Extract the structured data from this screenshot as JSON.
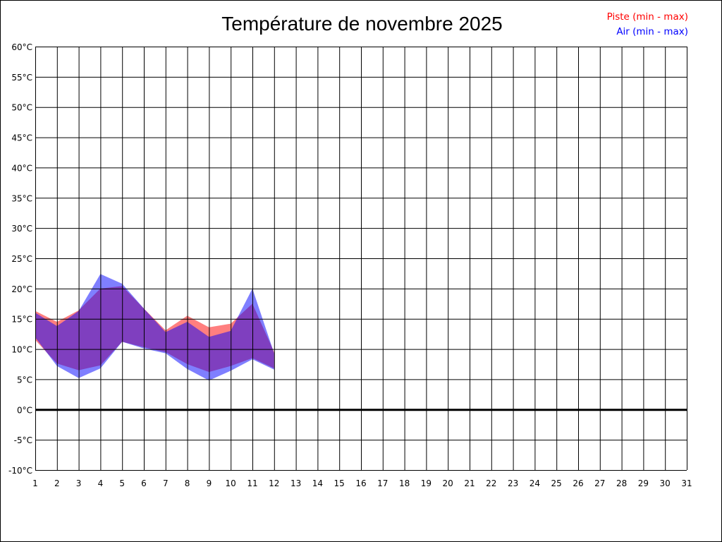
{
  "chart_data": {
    "type": "area",
    "title": "Température de novembre 2025",
    "xlabel": "",
    "ylabel": "",
    "x_ticks": [
      "1",
      "2",
      "3",
      "4",
      "5",
      "6",
      "7",
      "8",
      "9",
      "10",
      "11",
      "12",
      "13",
      "14",
      "15",
      "16",
      "17",
      "18",
      "19",
      "20",
      "21",
      "22",
      "23",
      "24",
      "25",
      "26",
      "27",
      "28",
      "29",
      "30",
      "31"
    ],
    "y_ticks": [
      "60°C",
      "55°C",
      "50°C",
      "45°C",
      "40°C",
      "35°C",
      "30°C",
      "25°C",
      "20°C",
      "15°C",
      "10°C",
      "5°C",
      "0°C",
      "-5°C",
      "-10°C"
    ],
    "xlim": [
      1,
      31
    ],
    "ylim": [
      -10,
      60
    ],
    "grid": true,
    "zero_line": true,
    "legend": [
      "Piste (min - max)",
      "Air (min - max)"
    ],
    "legend_position": "top-right",
    "series": [
      {
        "name": "Piste (min - max)",
        "color": "#ff0000",
        "x": [
          1,
          2,
          3,
          4,
          5,
          6,
          7,
          8,
          9,
          10,
          11,
          12
        ],
        "min": [
          11.5,
          7.6,
          6.5,
          7.3,
          11.2,
          10.3,
          9.5,
          7.5,
          6.2,
          7.2,
          8.5,
          6.8
        ],
        "max": [
          16.3,
          14.5,
          16.4,
          20.0,
          20.4,
          16.7,
          13.1,
          15.5,
          13.6,
          14.2,
          17.5,
          9.5
        ]
      },
      {
        "name": "Air (min - max)",
        "color": "#0000ff",
        "x": [
          1,
          2,
          3,
          4,
          5,
          6,
          7,
          8,
          9,
          10,
          11,
          12
        ],
        "min": [
          11.9,
          7.2,
          5.2,
          6.8,
          11.2,
          10.1,
          9.3,
          6.7,
          4.8,
          6.4,
          8.3,
          6.6
        ],
        "max": [
          16.0,
          13.8,
          16.3,
          22.4,
          20.8,
          16.7,
          12.8,
          14.5,
          12.0,
          13.0,
          20.0,
          9.3
        ]
      }
    ]
  }
}
